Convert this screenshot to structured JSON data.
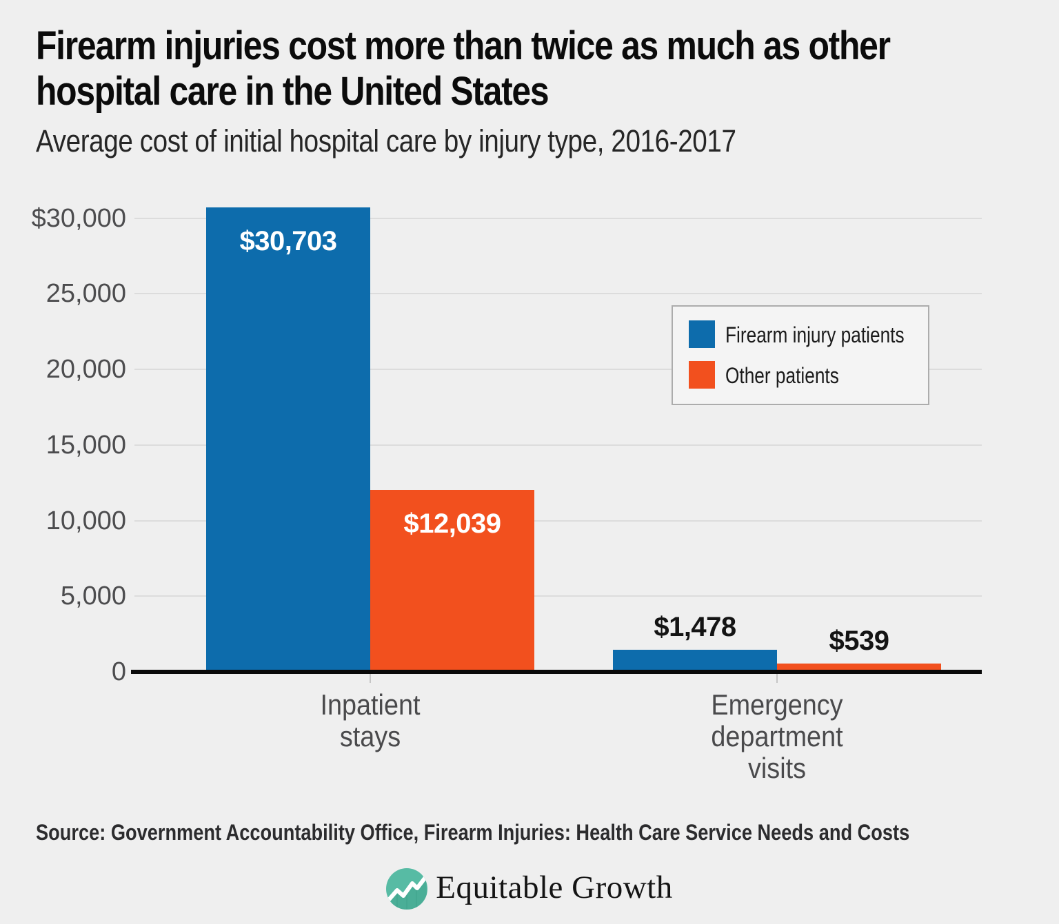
{
  "title": "Firearm injuries cost more than twice as much as other\nhospital care in the United States",
  "subtitle": "Average cost of initial hospital care by injury type, 2016-2017",
  "colors": {
    "background": "#efefef",
    "firearm_blue": "#0d6cac",
    "other_orange": "#f2501e",
    "gridline": "#dcdcdc",
    "axis": "#0a0a0a",
    "logo_teal": "#57bba4",
    "logo_teal_dark": "#4aae97"
  },
  "y_axis": {
    "max": 30000,
    "min": 0,
    "step": 5000,
    "tick_labels": [
      "$30,000",
      "25,000",
      "20,000",
      "15,000",
      "10,000",
      "5,000",
      "0"
    ]
  },
  "x_axis": {
    "category_labels": [
      "Inpatient\nstays",
      "Emergency\ndepartment\nvisits"
    ]
  },
  "legend": {
    "items": [
      {
        "label": "Firearm injury patients",
        "color": "#0d6cac"
      },
      {
        "label": "Other patients",
        "color": "#f2501e"
      }
    ]
  },
  "chart_data": {
    "type": "bar",
    "title": "Firearm injuries cost more than twice as much as other hospital care in the United States",
    "subtitle": "Average cost of initial hospital care by injury type, 2016-2017",
    "categories": [
      "Inpatient stays",
      "Emergency department visits"
    ],
    "series": [
      {
        "name": "Firearm injury patients",
        "values": [
          30703,
          1478
        ]
      },
      {
        "name": "Other patients",
        "values": [
          12039,
          539
        ]
      }
    ],
    "data_labels": [
      [
        "$30,703",
        "$1,478"
      ],
      [
        "$12,039",
        "$539"
      ]
    ],
    "xlabel": "",
    "ylabel": "",
    "ylim": [
      0,
      30000
    ],
    "grid": true,
    "legend_position": "upper right"
  },
  "source": "Source: Government Accountability Office, Firearm Injuries: Health Care Service Needs and Costs",
  "logo": {
    "wordmark": "Equitable Growth"
  }
}
